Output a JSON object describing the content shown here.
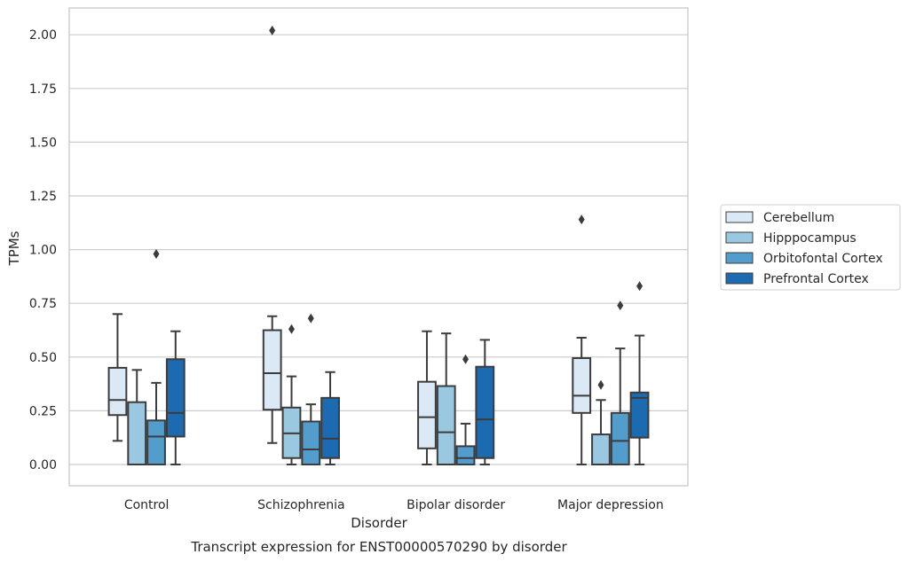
{
  "chart_data": {
    "type": "box",
    "title": "",
    "caption": "Transcript expression for ENST00000570290 by disorder",
    "xlabel": "Disorder",
    "ylabel": "TPMs",
    "ylim": [
      -0.1,
      2.12
    ],
    "yticks": [
      "0.00",
      "0.25",
      "0.50",
      "0.75",
      "1.00",
      "1.25",
      "1.50",
      "1.75",
      "2.00"
    ],
    "grid": true,
    "legend_position": "right",
    "categories": [
      "Control",
      "Schizophrenia",
      "Bipolar disorder",
      "Major depression"
    ],
    "series": [
      {
        "name": "Cerebellum",
        "color": "#dbe9f6",
        "boxes": [
          {
            "whisker_low": 0.11,
            "q1": 0.23,
            "median": 0.3,
            "q3": 0.45,
            "whisker_high": 0.7,
            "outliers": []
          },
          {
            "whisker_low": 0.1,
            "q1": 0.255,
            "median": 0.425,
            "q3": 0.625,
            "whisker_high": 0.69,
            "outliers": [
              2.02
            ]
          },
          {
            "whisker_low": 0.0,
            "q1": 0.075,
            "median": 0.22,
            "q3": 0.385,
            "whisker_high": 0.62,
            "outliers": []
          },
          {
            "whisker_low": 0.0,
            "q1": 0.24,
            "median": 0.32,
            "q3": 0.495,
            "whisker_high": 0.59,
            "outliers": [
              1.14
            ]
          }
        ]
      },
      {
        "name": "Hipppocampus",
        "color": "#9ac8e0",
        "boxes": [
          {
            "whisker_low": 0.0,
            "q1": 0.0,
            "median": 0.0,
            "q3": 0.29,
            "whisker_high": 0.44,
            "outliers": []
          },
          {
            "whisker_low": 0.0,
            "q1": 0.03,
            "median": 0.145,
            "q3": 0.265,
            "whisker_high": 0.41,
            "outliers": [
              0.63
            ]
          },
          {
            "whisker_low": 0.0,
            "q1": 0.0,
            "median": 0.15,
            "q3": 0.365,
            "whisker_high": 0.61,
            "outliers": []
          },
          {
            "whisker_low": 0.0,
            "q1": 0.0,
            "median": 0.0,
            "q3": 0.14,
            "whisker_high": 0.3,
            "outliers": [
              0.37
            ]
          }
        ]
      },
      {
        "name": "Orbitofontal Cortex",
        "color": "#529dcc",
        "boxes": [
          {
            "whisker_low": 0.0,
            "q1": 0.0,
            "median": 0.13,
            "q3": 0.205,
            "whisker_high": 0.38,
            "outliers": [
              0.98
            ]
          },
          {
            "whisker_low": 0.0,
            "q1": 0.0,
            "median": 0.07,
            "q3": 0.2,
            "whisker_high": 0.28,
            "outliers": [
              0.68
            ]
          },
          {
            "whisker_low": 0.0,
            "q1": 0.0,
            "median": 0.03,
            "q3": 0.085,
            "whisker_high": 0.19,
            "outliers": [
              0.49
            ]
          },
          {
            "whisker_low": 0.0,
            "q1": 0.0,
            "median": 0.11,
            "q3": 0.24,
            "whisker_high": 0.54,
            "outliers": [
              0.74
            ]
          }
        ]
      },
      {
        "name": "Prefrontal Cortex",
        "color": "#1c6aaf",
        "boxes": [
          {
            "whisker_low": 0.0,
            "q1": 0.13,
            "median": 0.24,
            "q3": 0.49,
            "whisker_high": 0.62,
            "outliers": []
          },
          {
            "whisker_low": 0.0,
            "q1": 0.03,
            "median": 0.12,
            "q3": 0.31,
            "whisker_high": 0.43,
            "outliers": []
          },
          {
            "whisker_low": 0.0,
            "q1": 0.03,
            "median": 0.21,
            "q3": 0.455,
            "whisker_high": 0.58,
            "outliers": []
          },
          {
            "whisker_low": 0.0,
            "q1": 0.125,
            "median": 0.31,
            "q3": 0.335,
            "whisker_high": 0.6,
            "outliers": [
              0.83
            ]
          }
        ]
      }
    ]
  }
}
